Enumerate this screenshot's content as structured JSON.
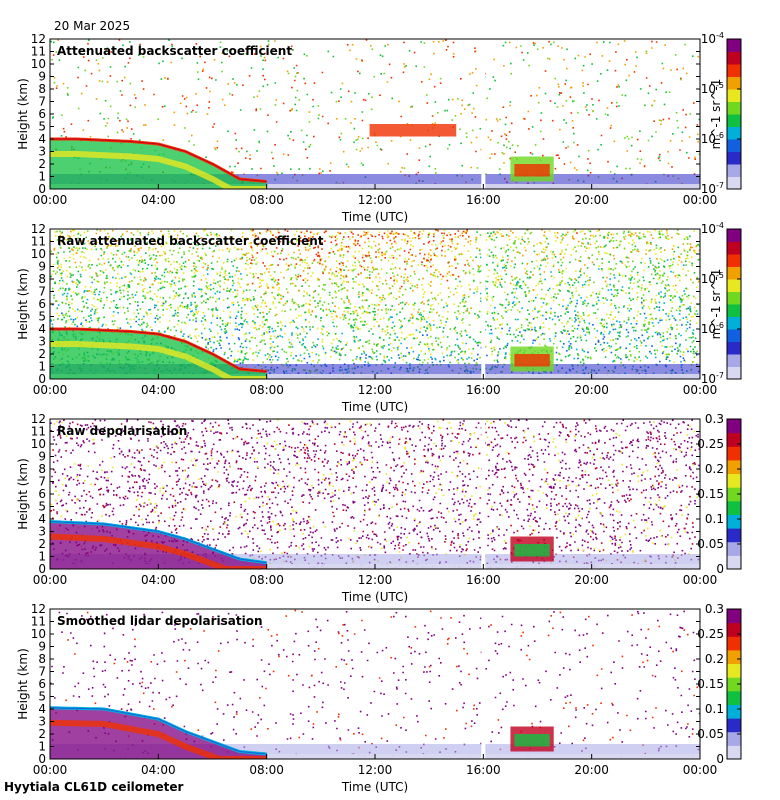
{
  "date": "20 Mar 2025",
  "footer": "Hyytiala CL61D ceilometer",
  "colors": {
    "rainbow": [
      "#d8d8f0",
      "#a8a8e8",
      "#2a2ac8",
      "#1060e0",
      "#00b0d8",
      "#10c040",
      "#70d820",
      "#e8e820",
      "#f0a000",
      "#f03000",
      "#c00020",
      "#800080"
    ]
  },
  "chart_data": [
    {
      "type": "heatmap",
      "title": "Attenuated backscatter coefficient",
      "xlabel": "Time (UTC)",
      "ylabel": "Height (km)",
      "x_ticks": [
        "00:00",
        "04:00",
        "08:00",
        "12:00",
        "16:00",
        "20:00",
        "00:00"
      ],
      "y_ticks": [
        "0",
        "1",
        "2",
        "3",
        "4",
        "5",
        "6",
        "7",
        "8",
        "9",
        "10",
        "11",
        "12"
      ],
      "xlim_hours": [
        0,
        24
      ],
      "ylim": [
        0,
        12
      ],
      "colorbar": {
        "scale": "log",
        "ticks": [
          "10^-7",
          "10^-6",
          "10^-5",
          "10^-4"
        ],
        "unit": "m^-1 sr^-1"
      },
      "noise": "sparse",
      "data_gap_hours": 16.0,
      "features": [
        {
          "kind": "cloud_layer_km",
          "x": [
            0,
            1,
            2,
            3,
            4,
            5,
            6,
            7,
            8
          ],
          "y": [
            4.0,
            4.0,
            3.9,
            3.8,
            3.6,
            3.0,
            2.0,
            0.8,
            0.6
          ]
        },
        {
          "kind": "cloud_patch_km",
          "x": [
            11.8,
            15.0
          ],
          "y": [
            4.2,
            5.2
          ]
        }
      ]
    },
    {
      "type": "heatmap",
      "title": "Raw attenuated backscatter coefficient",
      "xlabel": "Time (UTC)",
      "ylabel": "Height (km)",
      "x_ticks": [
        "00:00",
        "04:00",
        "08:00",
        "12:00",
        "16:00",
        "20:00",
        "00:00"
      ],
      "y_ticks": [
        "0",
        "1",
        "2",
        "3",
        "4",
        "5",
        "6",
        "7",
        "8",
        "9",
        "10",
        "11",
        "12"
      ],
      "xlim_hours": [
        0,
        24
      ],
      "ylim": [
        0,
        12
      ],
      "colorbar": {
        "scale": "log",
        "ticks": [
          "10^-7",
          "10^-6",
          "10^-5",
          "10^-4"
        ],
        "unit": "m^-1 sr^-1"
      },
      "noise": "dense",
      "data_gap_hours": 16.0,
      "features": [
        {
          "kind": "cloud_layer_km",
          "x": [
            0,
            1,
            2,
            3,
            4,
            5,
            6,
            7,
            8
          ],
          "y": [
            4.0,
            4.0,
            3.9,
            3.8,
            3.6,
            3.0,
            2.0,
            0.8,
            0.6
          ]
        }
      ]
    },
    {
      "type": "heatmap",
      "title": "Raw depolarisation",
      "xlabel": "Time (UTC)",
      "ylabel": "Height (km)",
      "x_ticks": [
        "00:00",
        "04:00",
        "08:00",
        "12:00",
        "16:00",
        "20:00",
        "00:00"
      ],
      "y_ticks": [
        "0",
        "1",
        "2",
        "3",
        "4",
        "5",
        "6",
        "7",
        "8",
        "9",
        "10",
        "11",
        "12"
      ],
      "xlim_hours": [
        0,
        24
      ],
      "ylim": [
        0,
        12
      ],
      "colorbar": {
        "scale": "linear",
        "ticks": [
          "0",
          "0.05",
          "0.1",
          "0.15",
          "0.2",
          "0.25",
          "0.3"
        ],
        "unit": ""
      },
      "noise": "purple",
      "data_gap_hours": 16.0,
      "features": [
        {
          "kind": "cloud_layer_km",
          "x": [
            0,
            2,
            4,
            5,
            6,
            7,
            8
          ],
          "y": [
            3.8,
            3.6,
            3.0,
            2.4,
            1.6,
            0.8,
            0.5
          ]
        }
      ]
    },
    {
      "type": "heatmap",
      "title": "Smoothed lidar depolarisation",
      "xlabel": "Time (UTC)",
      "ylabel": "Height (km)",
      "x_ticks": [
        "00:00",
        "04:00",
        "08:00",
        "12:00",
        "16:00",
        "20:00",
        "00:00"
      ],
      "y_ticks": [
        "0",
        "1",
        "2",
        "3",
        "4",
        "5",
        "6",
        "7",
        "8",
        "9",
        "10",
        "11",
        "12"
      ],
      "xlim_hours": [
        0,
        24
      ],
      "ylim": [
        0,
        12
      ],
      "colorbar": {
        "scale": "linear",
        "ticks": [
          "0",
          "0.05",
          "0.1",
          "0.15",
          "0.2",
          "0.25",
          "0.3"
        ],
        "unit": ""
      },
      "noise": "sparse_purple",
      "data_gap_hours": 16.0,
      "features": [
        {
          "kind": "cloud_layer_km",
          "x": [
            0,
            2,
            4,
            5,
            6,
            7,
            8
          ],
          "y": [
            4.1,
            4.0,
            3.2,
            2.2,
            1.4,
            0.6,
            0.4
          ]
        }
      ]
    }
  ]
}
